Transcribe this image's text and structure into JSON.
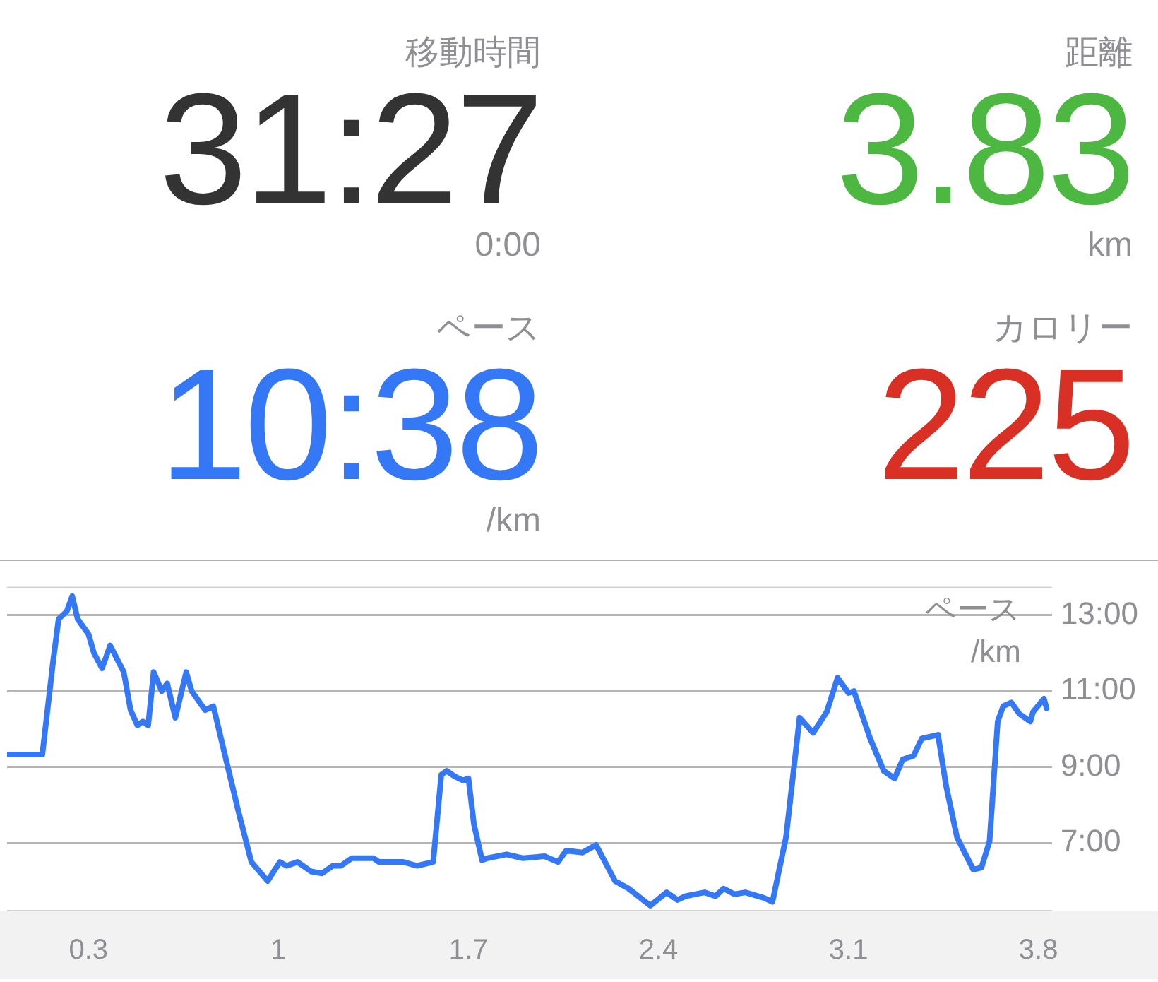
{
  "chart_data": [
    {
      "type": "other",
      "annotations": [
        "移動時間",
        "31:27",
        "0:00",
        "距離",
        "3.83",
        "km",
        "ペース",
        "10:38",
        "/km",
        "カロリー",
        "225"
      ],
      "colors": [
        "#333333",
        "#4cb842",
        "#3478f6",
        "#d93025"
      ]
    },
    {
      "type": "line",
      "ylabel": "ペース /km",
      "x": [
        0.0,
        0.13,
        0.17,
        0.19,
        0.22,
        0.24,
        0.26,
        0.3,
        0.32,
        0.35,
        0.38,
        0.43,
        0.455,
        0.48,
        0.5,
        0.52,
        0.54,
        0.57,
        0.59,
        0.62,
        0.66,
        0.68,
        0.73,
        0.76,
        0.8,
        0.85,
        0.9,
        0.96,
        1.005,
        1.03,
        1.07,
        1.12,
        1.16,
        1.2,
        1.23,
        1.27,
        1.35,
        1.37,
        1.46,
        1.51,
        1.57,
        1.6,
        1.62,
        1.65,
        1.68,
        1.7,
        1.72,
        1.75,
        1.77,
        1.84,
        1.9,
        1.98,
        2.03,
        2.06,
        2.12,
        2.17,
        2.24,
        2.29,
        2.37,
        2.43,
        2.47,
        2.5,
        2.57,
        2.61,
        2.64,
        2.68,
        2.72,
        2.79,
        2.82,
        2.87,
        2.92,
        2.97,
        3.02,
        3.06,
        3.1,
        3.12,
        3.18,
        3.23,
        3.27,
        3.3,
        3.34,
        3.37,
        3.43,
        3.46,
        3.5,
        3.56,
        3.59,
        3.62,
        3.65,
        3.67,
        3.7,
        3.73,
        3.77,
        3.78,
        3.82,
        3.83
      ],
      "series": [
        {
          "color": "#3478f6",
          "values": [
            9.33,
            9.33,
            11.8,
            12.9,
            13.1,
            13.5,
            12.9,
            12.5,
            12.0,
            11.6,
            12.2,
            11.5,
            10.5,
            10.1,
            10.2,
            10.1,
            11.5,
            11.0,
            11.2,
            10.3,
            11.5,
            11.0,
            10.5,
            10.6,
            9.4,
            7.9,
            6.5,
            6.0,
            6.5,
            6.4,
            6.5,
            6.25,
            6.2,
            6.4,
            6.4,
            6.6,
            6.6,
            6.5,
            6.5,
            6.4,
            6.5,
            8.8,
            8.9,
            8.75,
            8.65,
            8.7,
            7.5,
            6.55,
            6.6,
            6.7,
            6.6,
            6.65,
            6.5,
            6.8,
            6.75,
            6.95,
            6.0,
            5.8,
            5.35,
            5.7,
            5.5,
            5.6,
            5.7,
            5.6,
            5.8,
            5.65,
            5.7,
            5.55,
            5.45,
            7.15,
            10.3,
            9.9,
            10.45,
            11.35,
            10.95,
            11.0,
            9.75,
            8.9,
            8.7,
            9.2,
            9.3,
            9.75,
            9.85,
            8.5,
            7.15,
            6.3,
            6.35,
            7.05,
            10.2,
            10.6,
            10.7,
            10.4,
            10.2,
            10.45,
            10.8,
            10.55
          ]
        }
      ],
      "xlim": [
        0,
        3.85
      ],
      "xticks": [
        0.3,
        1.0,
        1.7,
        2.4,
        3.1,
        3.8
      ],
      "ylim": [
        5.2,
        13.75
      ],
      "yticks": [
        {
          "value": 7,
          "label": "7:00"
        },
        {
          "value": 9,
          "label": "9:00"
        },
        {
          "value": 11,
          "label": "11:00"
        },
        {
          "value": 13,
          "label": "13:00"
        }
      ],
      "grid": "y",
      "marker": "none",
      "line_style": "solid"
    }
  ]
}
